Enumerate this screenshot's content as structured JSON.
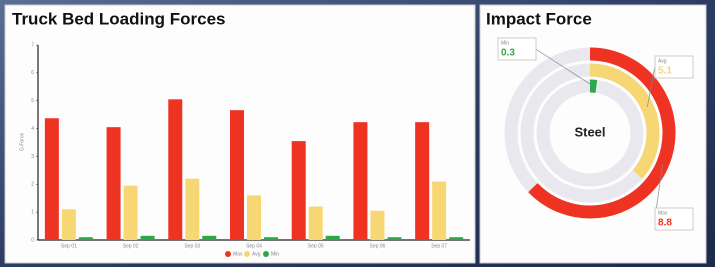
{
  "chart_data": [
    {
      "type": "bar",
      "title": "Truck Bed Loading Forces",
      "y_label": "G-Force",
      "categories": [
        "Sep 01",
        "Sep 02",
        "Sep 03",
        "Sep 04",
        "Sep 05",
        "Sep 06",
        "Sep 07"
      ],
      "series": [
        {
          "name": "Max",
          "color": "#ee3322",
          "values": [
            4.37,
            4.05,
            5.05,
            4.66,
            3.55,
            4.23,
            4.23
          ]
        },
        {
          "name": "Avg",
          "color": "#f7d774",
          "values": [
            1.1,
            1.95,
            2.2,
            1.6,
            1.2,
            1.05,
            2.1
          ]
        },
        {
          "name": "Min",
          "color": "#2aa84a",
          "values": [
            0.1,
            0.15,
            0.15,
            0.1,
            0.15,
            0.1,
            0.1
          ]
        }
      ],
      "ylim": [
        0,
        7
      ],
      "yticks": [
        0,
        1,
        2,
        3,
        4,
        5,
        6,
        7
      ],
      "legend": "bottom"
    },
    {
      "type": "radial-bar",
      "title": "Impact Force",
      "center_label": "Steel",
      "categories": [
        "Max",
        "Avg",
        "Min"
      ],
      "values": [
        8.8,
        5.1,
        0.3
      ],
      "colors": [
        "#ee3322",
        "#f7d774",
        "#2aa84a"
      ],
      "ylim": [
        0,
        14
      ]
    }
  ]
}
